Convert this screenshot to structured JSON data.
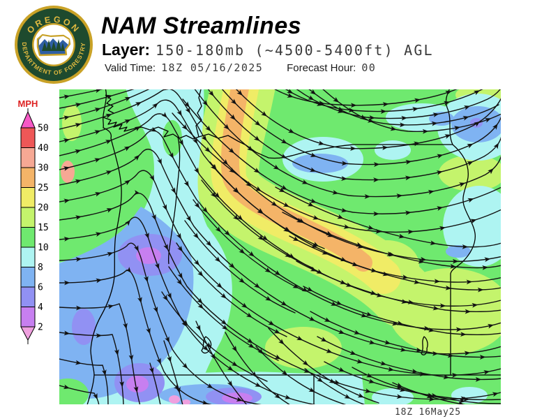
{
  "page": {
    "background": "#FFFFFF"
  },
  "logo": {
    "top_text": "OREGON",
    "bottom_text": "DEPARTMENT OF FORESTRY",
    "ring_color": "#1E4A2E",
    "gold_color": "#C9A227",
    "text_color": "#E0B93F",
    "inner_blue": "#2F5FA5",
    "tree_color": "#1E4A2E"
  },
  "header": {
    "title": "NAM Streamlines",
    "layer_label": "Layer:",
    "layer_value": "150-180mb (~4500-5400ft) AGL",
    "valid_label": "Valid Time:",
    "valid_value": "18Z 05/16/2025",
    "forecast_label": "Forecast Hour:",
    "forecast_value": "00"
  },
  "legend": {
    "unit": "MPH",
    "unit_color": "#DD2222",
    "ticks": [
      "50",
      "40",
      "30",
      "25",
      "20",
      "15",
      "10",
      "8",
      "6",
      "4",
      "2"
    ],
    "ranges_top_to_bottom": [
      ">50",
      "40-50",
      "30-40",
      "25-30",
      "20-25",
      "15-20",
      "10-15",
      "8-10",
      "6-8",
      "4-6",
      "2-4",
      "<2"
    ],
    "segment_colors_top_to_bottom": [
      "#EE5757",
      "#F6A894",
      "#F4B468",
      "#F0EC66",
      "#C4F46C",
      "#6FE96F",
      "#AEF4F2",
      "#7FB3F2",
      "#9191F3",
      "#C77FF0"
    ],
    "above_max_color": "#F659C6",
    "below_min_color": "#EFA0DF"
  },
  "map": {
    "timestamp": "18Z 16May25",
    "colors": {
      "base": "#6FE96F",
      "yellow_green": "#C4F46C",
      "yellow": "#F0EC66",
      "orange": "#F4B468",
      "salmon": "#F6A894",
      "cyan": "#AEF4F2",
      "blue": "#7FB3F2",
      "violet": "#9191F3",
      "purple": "#C77FF0",
      "pink": "#EFA0DF",
      "streamline": "#121212",
      "border": "#000000"
    }
  }
}
